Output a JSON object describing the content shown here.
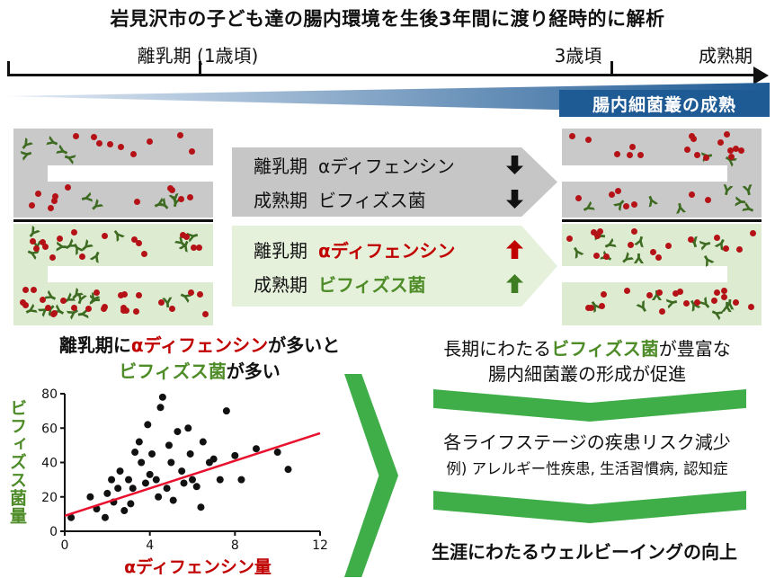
{
  "title": "岩見沢市の子ども達の腸内環境を生後3年間に渡り経時的に解析",
  "timeline": {
    "weaning": "離乳期 (1歳頃)",
    "three_years": "3歳頃",
    "maturity": "成熟期"
  },
  "banner": "腸内細菌叢の成熟",
  "callouts": {
    "decrease": {
      "row1": {
        "period": "離乳期",
        "item": "αディフェンシン",
        "direction": "down"
      },
      "row2": {
        "period": "成熟期",
        "item": "ビフィズス菌",
        "direction": "down"
      }
    },
    "increase": {
      "row1": {
        "period": "離乳期",
        "item": "αディフェンシン",
        "direction": "up"
      },
      "row2": {
        "period": "成熟期",
        "item": "ビフィズス菌",
        "direction": "up"
      }
    }
  },
  "gut_panels": [
    {
      "id": "weaning-low",
      "side": "left",
      "style": "gray",
      "microbes": 11,
      "dots": 20
    },
    {
      "id": "weaning-high",
      "side": "left",
      "style": "green",
      "microbes": 26,
      "dots": 42
    },
    {
      "id": "mature-low",
      "side": "right",
      "style": "gray",
      "microbes": 10,
      "dots": 24
    },
    {
      "id": "mature-high",
      "side": "right",
      "style": "green",
      "microbes": 20,
      "dots": 34
    }
  ],
  "finding": {
    "pre": "離乳期に",
    "kw1": "αディフェンシン",
    "mid": "が多いと",
    "kw2": "ビフィズス菌",
    "post": "が多い"
  },
  "chart_data": {
    "type": "scatter",
    "xlabel": "αディフェンシン量",
    "ylabel": "ビフィズス菌量",
    "xlim": [
      0,
      12
    ],
    "ylim": [
      0,
      80
    ],
    "xticks": [
      0,
      4,
      8,
      12
    ],
    "yticks": [
      0,
      20,
      40,
      60,
      80
    ],
    "points": [
      [
        0.3,
        8
      ],
      [
        1.2,
        20
      ],
      [
        1.5,
        13
      ],
      [
        1.9,
        8
      ],
      [
        2.0,
        22
      ],
      [
        2.2,
        30
      ],
      [
        2.3,
        17
      ],
      [
        2.5,
        25
      ],
      [
        2.6,
        35
      ],
      [
        2.8,
        12
      ],
      [
        3.0,
        30
      ],
      [
        3.1,
        16
      ],
      [
        3.2,
        25
      ],
      [
        3.3,
        46
      ],
      [
        3.5,
        52
      ],
      [
        3.6,
        40
      ],
      [
        3.8,
        28
      ],
      [
        3.9,
        62
      ],
      [
        4.0,
        33
      ],
      [
        4.1,
        45
      ],
      [
        4.3,
        30
      ],
      [
        4.4,
        20
      ],
      [
        4.5,
        72
      ],
      [
        4.6,
        78
      ],
      [
        4.8,
        25
      ],
      [
        4.9,
        50
      ],
      [
        5.0,
        40
      ],
      [
        5.1,
        18
      ],
      [
        5.3,
        58
      ],
      [
        5.5,
        35
      ],
      [
        5.6,
        28
      ],
      [
        5.8,
        60
      ],
      [
        5.9,
        45
      ],
      [
        6.0,
        30
      ],
      [
        6.2,
        26
      ],
      [
        6.4,
        14
      ],
      [
        6.5,
        52
      ],
      [
        6.8,
        40
      ],
      [
        7.0,
        42
      ],
      [
        7.3,
        30
      ],
      [
        7.6,
        70
      ],
      [
        8.0,
        44
      ],
      [
        8.3,
        30
      ],
      [
        9.0,
        48
      ],
      [
        10.0,
        46
      ],
      [
        10.5,
        36
      ]
    ],
    "trend_line": {
      "x": [
        0,
        12
      ],
      "y": [
        9,
        57
      ],
      "color": "#e8112d"
    }
  },
  "flow": {
    "step1": {
      "pre": "長期にわたる",
      "kw": "ビフィズス菌",
      "post": "が豊富な",
      "line2": "腸内細菌叢の形成が促進"
    },
    "step2": {
      "line1": "各ライフステージの疾患リスク減少",
      "line2": "例) アレルギー性疾患, 生活習慣病, 認知症"
    },
    "step3": "生涯にわたるウェルビーイングの向上"
  },
  "colors": {
    "keyword_red": "#c00000",
    "keyword_green": "#4e8c28",
    "flow_green": "#3fae49",
    "banner_blue": "#1e5a94",
    "panel_gray": "#c9c9c9",
    "panel_green": "#ddebd1",
    "microbe_green": "#3e6b22",
    "dot_red": "#b51217",
    "trend_red": "#e8112d"
  }
}
